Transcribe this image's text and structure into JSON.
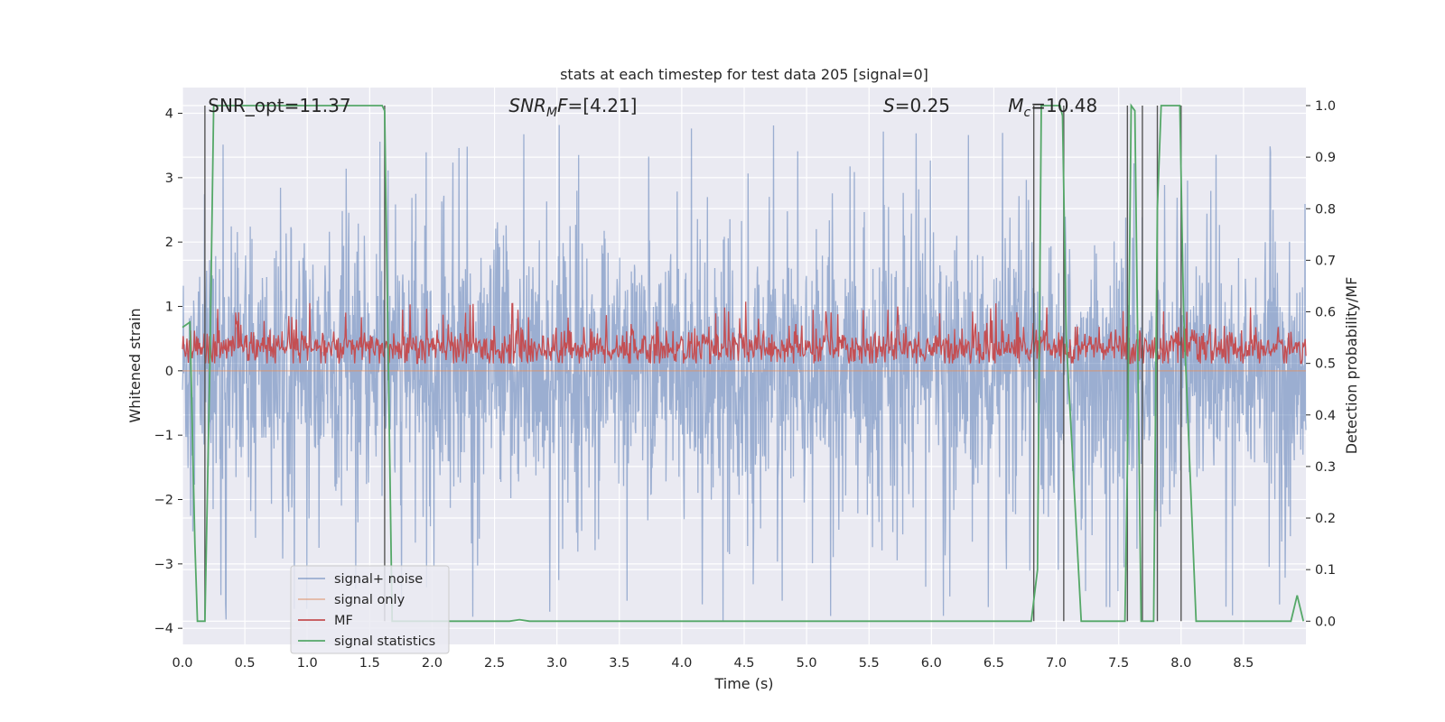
{
  "chart_data": {
    "type": "line",
    "title": "stats at each timestep for test data 205 [signal=0]",
    "xlabel": "Time (s)",
    "ylabel": "Whitened strain",
    "y2label": "Detection probability/MF",
    "xlim": [
      0.0,
      9.0
    ],
    "ylim": [
      -4.25,
      4.4
    ],
    "y2lim": [
      -0.045,
      1.035
    ],
    "grid": true,
    "legend_placement": "lower-left",
    "x_ticks": [
      "0.0",
      "0.5",
      "1.0",
      "1.5",
      "2.0",
      "2.5",
      "3.0",
      "3.5",
      "4.0",
      "4.5",
      "5.0",
      "5.5",
      "6.0",
      "6.5",
      "7.0",
      "7.5",
      "8.0",
      "8.5"
    ],
    "y_ticks": [
      "4",
      "3",
      "2",
      "1",
      "0",
      "−1",
      "−2",
      "−3",
      "−4"
    ],
    "y2_ticks": [
      "1.0",
      "0.9",
      "0.8",
      "0.7",
      "0.6",
      "0.5",
      "0.4",
      "0.3",
      "0.2",
      "0.1",
      "0.0"
    ],
    "annotations": [
      {
        "parts": [
          {
            "t": "SNR_opt=11.37",
            "i": false
          }
        ],
        "x": 0.19
      },
      {
        "parts": [
          {
            "t": "SNR",
            "i": true
          },
          {
            "t": "M",
            "i": true,
            "sub": true
          },
          {
            "t": "F",
            "i": true
          },
          {
            "t": "=[4.21]",
            "i": false
          }
        ],
        "x": 2.6
      },
      {
        "parts": [
          {
            "t": "S",
            "i": true
          },
          {
            "t": "=0.25",
            "i": false
          }
        ],
        "x": 5.6
      },
      {
        "parts": [
          {
            "t": "M",
            "i": true
          },
          {
            "t": "c",
            "i": true,
            "sub": true
          },
          {
            "t": "=10.48",
            "i": false
          }
        ],
        "x": 6.6
      }
    ],
    "series": [
      {
        "name": "signal+ noise",
        "color": "#4c72b0",
        "kind": "noise",
        "amplitude_typical": 1.5,
        "amplitude_max": 4.0,
        "axis": "left"
      },
      {
        "name": "signal only",
        "color": "#dd8452",
        "kind": "flat",
        "value": 0,
        "axis": "left"
      },
      {
        "name": "MF",
        "color": "#c44e52",
        "kind": "noise-band",
        "mean": 0.53,
        "low": 0.5,
        "high": 0.62,
        "axis": "right"
      },
      {
        "name": "signal statistics",
        "color": "#55a868",
        "axis": "right",
        "x": [
          0.0,
          0.06,
          0.1,
          0.12,
          0.18,
          0.22,
          0.25,
          1.58,
          1.6,
          1.62,
          1.68,
          2.62,
          2.7,
          2.78,
          6.8,
          6.85,
          6.88,
          7.03,
          7.05,
          7.08,
          7.2,
          7.55,
          7.57,
          7.6,
          7.63,
          7.68,
          7.7,
          7.78,
          7.81,
          7.84,
          7.99,
          8.02,
          8.12,
          8.88,
          8.93,
          8.98
        ],
        "y": [
          0.57,
          0.58,
          0.15,
          0.0,
          0.0,
          0.5,
          1.0,
          1.0,
          1.0,
          0.99,
          0.0,
          0.0,
          0.003,
          0.0,
          0.0,
          0.1,
          1.0,
          1.0,
          0.98,
          0.55,
          0.0,
          0.0,
          0.3,
          1.0,
          0.99,
          0.0,
          0.0,
          0.0,
          0.8,
          1.0,
          1.0,
          0.6,
          0.0,
          0.0,
          0.05,
          0.0
        ]
      }
    ],
    "vertical_markers_x": [
      0.18,
      1.62,
      6.82,
      7.06,
      7.57,
      7.69,
      7.81,
      8.0
    ],
    "vertical_marker_color": "#555555"
  }
}
